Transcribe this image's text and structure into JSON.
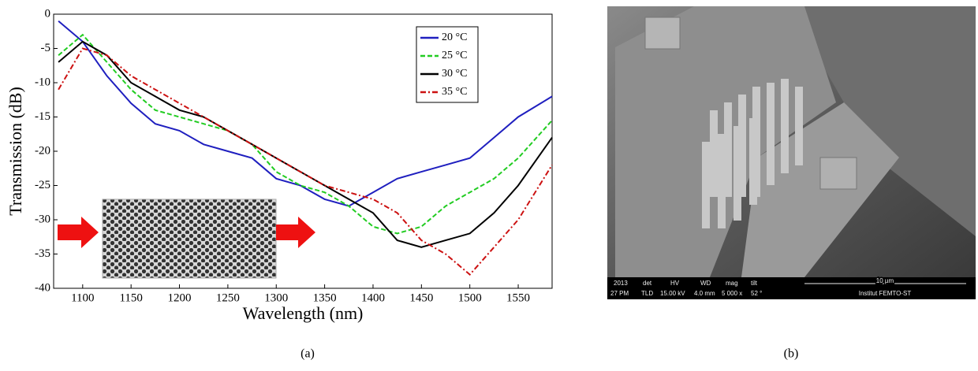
{
  "chart_data": {
    "type": "line",
    "xlabel": "Wavelength (nm)",
    "ylabel": "Transmission (dB)",
    "x": [
      1075,
      1100,
      1125,
      1150,
      1175,
      1200,
      1225,
      1250,
      1275,
      1300,
      1325,
      1350,
      1375,
      1400,
      1425,
      1450,
      1475,
      1500,
      1525,
      1550,
      1585
    ],
    "series": [
      {
        "name": "20 °C",
        "color": "#1f1fbf",
        "linestyle": "solid",
        "values": [
          -1,
          -4,
          -9,
          -13,
          -16,
          -17,
          -19,
          -20,
          -21,
          -24,
          -25,
          -27,
          -28,
          -26,
          -24,
          -23,
          -22,
          -21,
          -18,
          -15,
          -12
        ]
      },
      {
        "name": "25 °C",
        "color": "#22cc22",
        "linestyle": "dashed",
        "values": [
          -6,
          -3,
          -7,
          -11,
          -14,
          -15,
          -16,
          -17,
          -19,
          -23,
          -25,
          -26,
          -28,
          -31,
          -32,
          -31,
          -28,
          -26,
          -24,
          -21,
          -15.5
        ]
      },
      {
        "name": "30 °C",
        "color": "#000000",
        "linestyle": "solid",
        "values": [
          -7,
          -4,
          -6,
          -10,
          -12,
          -14,
          -15,
          -17,
          -19,
          -21,
          -23,
          -25,
          -27,
          -29,
          -33,
          -34,
          -33,
          -32,
          -29,
          -25,
          -18
        ]
      },
      {
        "name": "35 °C",
        "color": "#cc1111",
        "linestyle": "dashdot",
        "values": [
          -11,
          -5,
          -6,
          -9,
          -11,
          -13,
          -15,
          -17,
          -19,
          -21,
          -23,
          -25,
          -26,
          -27,
          -29,
          -33,
          -35,
          -38,
          -34,
          -30,
          -22
        ]
      }
    ],
    "xlim": [
      1070,
      1585
    ],
    "xticks": [
      1100,
      1150,
      1200,
      1250,
      1300,
      1350,
      1400,
      1450,
      1500,
      1550
    ],
    "ylim": [
      -40,
      0
    ],
    "yticks": [
      0,
      -5,
      -10,
      -15,
      -20,
      -25,
      -30,
      -35,
      -40
    ],
    "legend": "upper right",
    "caption": "(a)"
  },
  "sem": {
    "caption": "(b)",
    "info_bar": [
      "2013",
      "27 PM",
      "det",
      "TLD",
      "HV",
      "15.00 kV",
      "WD",
      "4.0 mm",
      "mag",
      "5 000 x",
      "tilt",
      "52 °",
      "10 µm",
      "Institut FEMTO-ST"
    ]
  }
}
